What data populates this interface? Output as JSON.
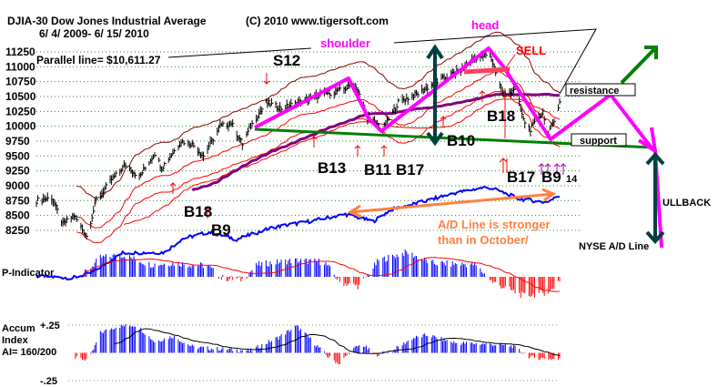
{
  "chart_data": {
    "type": "ohlc-bar",
    "title": "DJIA-30  Dow Jones Industrial Average",
    "copyright": "(C) 2010 www.tigersoft.com",
    "date_range": "6/ 4/ 2009- 6/ 15/ 2010",
    "y_ticks": [
      "11250",
      "11000",
      "10750",
      "10500",
      "10250",
      "10000",
      "9750",
      "9500",
      "9250",
      "9000",
      "8750",
      "8500",
      "8250"
    ],
    "ylim": [
      8250,
      11250
    ],
    "xlim": [
      "2009-06-04",
      "2010-06-15"
    ],
    "grid": true,
    "parallel_line_label": "Parallel line= $10,611.27",
    "price_close": [
      [
        "2009-06-04",
        8750
      ],
      [
        "2009-06-15",
        8800
      ],
      [
        "2009-06-23",
        8350
      ],
      [
        "2009-07-01",
        8500
      ],
      [
        "2009-07-10",
        8150
      ],
      [
        "2009-07-17",
        8750
      ],
      [
        "2009-07-28",
        9100
      ],
      [
        "2009-08-07",
        9350
      ],
      [
        "2009-08-17",
        9150
      ],
      [
        "2009-08-28",
        9550
      ],
      [
        "2009-09-02",
        9300
      ],
      [
        "2009-09-16",
        9750
      ],
      [
        "2009-09-24",
        9700
      ],
      [
        "2009-10-02",
        9500
      ],
      [
        "2009-10-14",
        10000
      ],
      [
        "2009-10-22",
        10050
      ],
      [
        "2009-10-30",
        9700
      ],
      [
        "2009-11-05",
        10000
      ],
      [
        "2009-11-16",
        10400
      ],
      [
        "2009-11-27",
        10300
      ],
      [
        "2009-12-10",
        10400
      ],
      [
        "2009-12-28",
        10550
      ],
      [
        "2010-01-08",
        10600
      ],
      [
        "2010-01-19",
        10700
      ],
      [
        "2010-01-28",
        10150
      ],
      [
        "2010-02-08",
        9950
      ],
      [
        "2010-02-19",
        10400
      ],
      [
        "2010-03-05",
        10550
      ],
      [
        "2010-03-19",
        10750
      ],
      [
        "2010-04-05",
        10950
      ],
      [
        "2010-04-15",
        11150
      ],
      [
        "2010-04-26",
        11200
      ],
      [
        "2010-05-06",
        10500
      ],
      [
        "2010-05-14",
        10650
      ],
      [
        "2010-05-20",
        10100
      ],
      [
        "2010-05-25",
        9950
      ],
      [
        "2010-06-03",
        10250
      ],
      [
        "2010-06-07",
        9850
      ],
      [
        "2010-06-15",
        10400
      ]
    ],
    "ad_line": {
      "label": "NYSE A/D Line",
      "points": [
        [
          "2009-06-04",
          7480
        ],
        [
          "2009-06-30",
          7450
        ],
        [
          "2009-07-13",
          7530
        ],
        [
          "2009-08-05",
          7870
        ],
        [
          "2009-09-04",
          7880
        ],
        [
          "2009-09-17",
          8110
        ],
        [
          "2009-10-06",
          8220
        ],
        [
          "2009-10-26",
          8100
        ],
        [
          "2009-11-21",
          8300
        ],
        [
          "2009-12-17",
          8400
        ],
        [
          "2010-01-12",
          8520
        ],
        [
          "2010-02-01",
          8400
        ],
        [
          "2010-02-14",
          8600
        ],
        [
          "2010-03-12",
          8750
        ],
        [
          "2010-04-01",
          8880
        ],
        [
          "2010-04-24",
          8980
        ],
        [
          "2010-05-04",
          8900
        ],
        [
          "2010-05-17",
          8780
        ],
        [
          "2010-06-05",
          8720
        ],
        [
          "2010-06-15",
          8830
        ]
      ]
    },
    "p_indicator": {
      "label": "P-Indicator",
      "points": [
        [
          "2009-07-08",
          10
        ],
        [
          "2009-07-20",
          70
        ],
        [
          "2009-08-05",
          80
        ],
        [
          "2009-08-25",
          45
        ],
        [
          "2009-09-10",
          50
        ],
        [
          "2009-10-05",
          40
        ],
        [
          "2009-10-15",
          -5
        ],
        [
          "2009-10-30",
          -10
        ],
        [
          "2009-11-10",
          45
        ],
        [
          "2009-12-05",
          60
        ],
        [
          "2009-12-28",
          55
        ],
        [
          "2010-01-08",
          -20
        ],
        [
          "2010-01-22",
          -35
        ],
        [
          "2010-02-05",
          60
        ],
        [
          "2010-02-25",
          90
        ],
        [
          "2010-03-15",
          50
        ],
        [
          "2010-04-15",
          45
        ],
        [
          "2010-04-28",
          -20
        ],
        [
          "2010-05-20",
          -70
        ],
        [
          "2010-06-08",
          -55
        ],
        [
          "2010-06-15",
          -10
        ]
      ]
    },
    "accum_index": {
      "label_lines": [
        "Accum",
        "Index",
        "AI= 160/200"
      ],
      "y_ticks": [
        "+.25",
        "-.25"
      ],
      "ylim": [
        -0.25,
        0.25
      ],
      "points": [
        [
          "2009-07-02",
          -0.05
        ],
        [
          "2009-07-12",
          -0.06
        ],
        [
          "2009-07-20",
          0.18
        ],
        [
          "2009-08-01",
          0.24
        ],
        [
          "2009-08-15",
          0.25
        ],
        [
          "2009-08-28",
          0.1
        ],
        [
          "2009-09-10",
          0.15
        ],
        [
          "2009-09-25",
          0.05
        ],
        [
          "2009-10-20",
          0.03
        ],
        [
          "2009-11-05",
          0.02
        ],
        [
          "2009-11-25",
          0.14
        ],
        [
          "2009-12-08",
          0.24
        ],
        [
          "2009-12-20",
          0.1
        ],
        [
          "2009-12-30",
          -0.03
        ],
        [
          "2010-01-08",
          -0.1
        ],
        [
          "2010-01-16",
          0.02
        ],
        [
          "2010-01-24",
          0.08
        ],
        [
          "2010-02-02",
          -0.02
        ],
        [
          "2010-02-15",
          0.02
        ],
        [
          "2010-03-01",
          0.13
        ],
        [
          "2010-03-12",
          0.16
        ],
        [
          "2010-04-01",
          0.09
        ],
        [
          "2010-04-25",
          0.08
        ],
        [
          "2010-05-12",
          0.06
        ],
        [
          "2010-05-25",
          -0.04
        ],
        [
          "2010-06-15",
          -0.06
        ]
      ]
    },
    "annotations": {
      "shoulder": "shoulder",
      "head": "head",
      "sell": "SELL",
      "s12": "S12",
      "b18_top": "B18",
      "b10": "B10",
      "b13": "B13",
      "b11": "B11",
      "b17": "B17",
      "b18_low": "B18",
      "b9": "B9",
      "b17_right": "B17",
      "b9_right": "B9",
      "b14": "14",
      "resistance": "resistance",
      "support": "support",
      "pullback": "ULLBACK",
      "ad_note_1": "A/D Line is stronger",
      "ad_note_2": "than in October/"
    },
    "colors": {
      "bars": "#000000",
      "bands": "#8b0000",
      "ma_red": "#ff0000",
      "ma_purple": "#800080",
      "pattern": "#ff00ff",
      "neckline": "#008000",
      "ad_line": "#0000ff",
      "ad_arrow": "#ff8040",
      "target_arrow": "#004040",
      "positive": "#0000ff",
      "negative": "#ff0000"
    }
  }
}
